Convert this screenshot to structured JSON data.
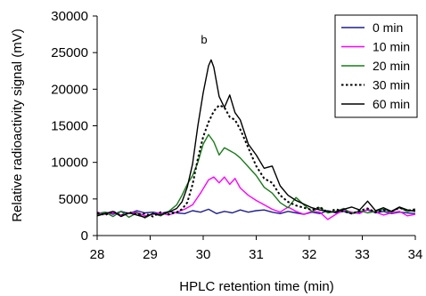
{
  "chart_data": {
    "type": "line",
    "annotation": "b",
    "xlabel": "HPLC retention time (min)",
    "ylabel": "Relative radioactivity signal (mV)",
    "xlim": [
      28,
      34
    ],
    "ylim": [
      0,
      30000
    ],
    "xticks": [
      "28",
      "29",
      "30",
      "31",
      "32",
      "33",
      "34"
    ],
    "yticks": [
      "0",
      "5000",
      "10000",
      "15000",
      "20000",
      "25000",
      "30000"
    ],
    "grid": false,
    "legend_position": "top-right",
    "series": [
      {
        "name": "0 min",
        "color": "#1f1f8f",
        "dash": "solid",
        "x": [
          28.0,
          28.15,
          28.3,
          28.45,
          28.6,
          28.75,
          28.9,
          29.05,
          29.2,
          29.35,
          29.5,
          29.65,
          29.8,
          29.95,
          30.1,
          30.25,
          30.4,
          30.55,
          30.7,
          30.85,
          31.0,
          31.15,
          31.3,
          31.45,
          31.6,
          31.75,
          31.9,
          32.05,
          32.2,
          32.35,
          32.5,
          32.65,
          32.8,
          32.95,
          33.1,
          33.25,
          33.4,
          33.55,
          33.7,
          33.85,
          34.0
        ],
        "y": [
          3000,
          3200,
          2900,
          3300,
          3000,
          3400,
          3100,
          3200,
          3000,
          3300,
          3100,
          3000,
          3400,
          3200,
          3600,
          3000,
          3300,
          3100,
          3500,
          3200,
          3400,
          3500,
          3200,
          3000,
          3300,
          3100,
          2900,
          3200,
          3000,
          3400,
          3100,
          3300,
          3000,
          3200,
          3500,
          3100,
          3300,
          3000,
          3200,
          3100,
          3000
        ]
      },
      {
        "name": "10 min",
        "color": "#ff00ff",
        "dash": "solid",
        "x": [
          28.0,
          28.15,
          28.3,
          28.45,
          28.6,
          28.75,
          28.9,
          29.05,
          29.2,
          29.35,
          29.5,
          29.65,
          29.8,
          29.95,
          30.1,
          30.2,
          30.3,
          30.4,
          30.5,
          30.6,
          30.7,
          30.85,
          31.0,
          31.15,
          31.3,
          31.45,
          31.6,
          31.75,
          31.9,
          32.05,
          32.2,
          32.35,
          32.5,
          32.65,
          32.8,
          32.95,
          33.1,
          33.25,
          33.4,
          33.55,
          33.7,
          33.85,
          34.0
        ],
        "y": [
          3200,
          2900,
          3100,
          2800,
          3000,
          3200,
          2700,
          2900,
          3100,
          2800,
          3200,
          3600,
          4200,
          5800,
          7600,
          8000,
          7200,
          8000,
          7000,
          7800,
          6500,
          5500,
          4800,
          4200,
          3600,
          3200,
          3900,
          3300,
          2900,
          3300,
          3200,
          2200,
          2900,
          3500,
          3200,
          3000,
          3600,
          3200,
          2800,
          3100,
          3300,
          2700,
          2900
        ]
      },
      {
        "name": "20 min",
        "color": "#1a7a1a",
        "dash": "solid",
        "x": [
          28.0,
          28.15,
          28.3,
          28.45,
          28.6,
          28.75,
          28.9,
          29.05,
          29.2,
          29.35,
          29.5,
          29.6,
          29.7,
          29.8,
          29.9,
          30.0,
          30.1,
          30.2,
          30.3,
          30.4,
          30.5,
          30.6,
          30.7,
          30.85,
          31.0,
          31.15,
          31.3,
          31.45,
          31.6,
          31.75,
          31.9,
          32.05,
          32.2,
          32.35,
          32.5,
          32.65,
          32.8,
          32.95,
          33.1,
          33.25,
          33.4,
          33.55,
          33.7,
          33.85,
          34.0
        ],
        "y": [
          2800,
          3200,
          2600,
          3300,
          2500,
          3100,
          2400,
          3000,
          2700,
          3300,
          4200,
          5500,
          7000,
          8200,
          10000,
          12500,
          13800,
          12800,
          11000,
          12000,
          11600,
          11200,
          10600,
          9400,
          8200,
          6600,
          5800,
          4500,
          3800,
          5200,
          4200,
          3300,
          3800,
          3100,
          3300,
          3700,
          3000,
          3400,
          3100,
          3300,
          3600,
          3200,
          3800,
          3300,
          3500
        ]
      },
      {
        "name": "30 min",
        "color": "#000000",
        "dash": "dotted",
        "x": [
          28.0,
          28.15,
          28.3,
          28.45,
          28.6,
          28.75,
          28.9,
          29.05,
          29.2,
          29.35,
          29.5,
          29.6,
          29.7,
          29.8,
          29.9,
          30.0,
          30.1,
          30.2,
          30.3,
          30.4,
          30.5,
          30.6,
          30.7,
          30.85,
          31.0,
          31.15,
          31.3,
          31.45,
          31.6,
          31.75,
          31.9,
          32.05,
          32.2,
          32.35,
          32.5,
          32.65,
          32.8,
          32.95,
          33.1,
          33.25,
          33.4,
          33.55,
          33.7,
          33.85,
          34.0
        ],
        "y": [
          3100,
          2800,
          3300,
          2700,
          3200,
          2900,
          3000,
          2600,
          3200,
          2900,
          3200,
          3600,
          4500,
          7000,
          10500,
          13500,
          15500,
          17000,
          17800,
          17500,
          16200,
          15800,
          14500,
          12000,
          9500,
          7800,
          7200,
          5500,
          4600,
          4100,
          3800,
          3500,
          3900,
          3200,
          3600,
          3300,
          3000,
          3400,
          3700,
          3200,
          3500,
          3300,
          3800,
          3400,
          3600
        ]
      },
      {
        "name": "60 min",
        "color": "#000000",
        "dash": "solid",
        "x": [
          28.0,
          28.15,
          28.3,
          28.45,
          28.6,
          28.75,
          28.9,
          29.05,
          29.2,
          29.35,
          29.5,
          29.6,
          29.7,
          29.8,
          29.9,
          30.0,
          30.1,
          30.15,
          30.2,
          30.3,
          30.4,
          30.5,
          30.6,
          30.7,
          30.85,
          31.0,
          31.15,
          31.3,
          31.45,
          31.6,
          31.75,
          31.9,
          32.05,
          32.2,
          32.35,
          32.5,
          32.65,
          32.8,
          32.95,
          33.1,
          33.25,
          33.4,
          33.55,
          33.7,
          33.85,
          34.0
        ],
        "y": [
          2700,
          3000,
          3300,
          2600,
          3100,
          2800,
          2500,
          3000,
          2800,
          3200,
          3700,
          4600,
          6600,
          9800,
          15000,
          19500,
          23200,
          24000,
          23000,
          19000,
          17500,
          19200,
          16800,
          15800,
          12500,
          11000,
          9200,
          9500,
          6800,
          5500,
          4800,
          4300,
          3800,
          3500,
          3300,
          3200,
          3600,
          3900,
          3500,
          4700,
          3400,
          3800,
          3300,
          3900,
          3500,
          3300
        ]
      }
    ]
  }
}
